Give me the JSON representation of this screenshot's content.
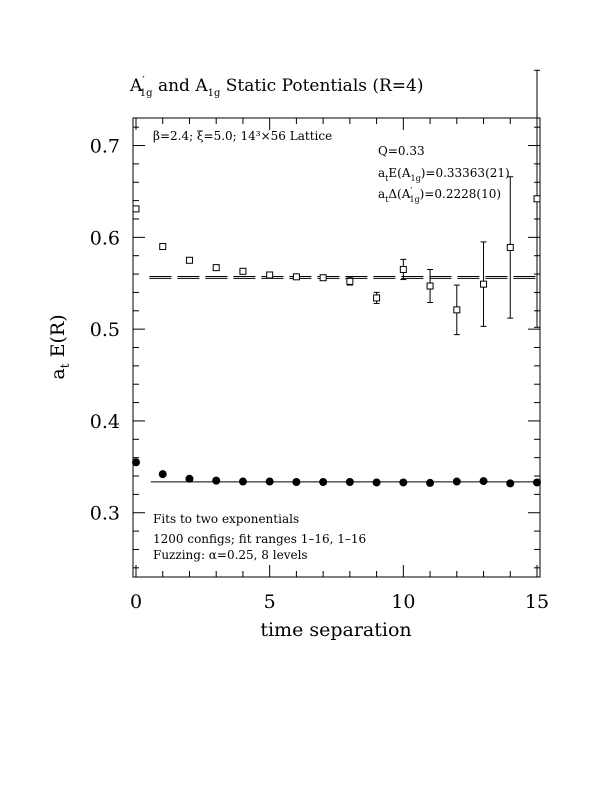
{
  "chart_data": {
    "type": "scatter",
    "title_main": "A",
    "title_parts": {
      "a": "A",
      "a_prime": "′",
      "a_sub": "1g",
      "mid": " and ",
      "b": "A",
      "b_sub": "1g",
      "end": " Static Potentials (R=4)"
    },
    "xlabel": "time separation",
    "ylabel_parts": {
      "main": "a",
      "sub": "t",
      "rest": " E(R)"
    },
    "xlim": [
      0,
      15
    ],
    "ylim": [
      0.23,
      0.73
    ],
    "x_ticks": [
      0,
      5,
      10,
      15
    ],
    "x_tick_labels": [
      "0",
      "5",
      "10",
      "15"
    ],
    "y_ticks": [
      0.3,
      0.4,
      0.5,
      0.6,
      0.7
    ],
    "y_tick_labels": [
      "0.3",
      "0.4",
      "0.5",
      "0.6",
      "0.7"
    ],
    "annotations": {
      "lattice": "β=2.4; ξ=5.0; 14³×56 Lattice",
      "q": "Q=0.33",
      "energy_prefix": "a",
      "energy_prefix_sub": "t",
      "energy_mid": "E(A",
      "energy_sub": "1g",
      "energy_val": ")=0.33363(21)",
      "delta_prefix": "a",
      "delta_prefix_sub": "t",
      "delta_mid": "Δ(A",
      "delta_prime": "′",
      "delta_sub": "1g",
      "delta_val": ")=0.2228(10)",
      "fit1": "Fits to two exponentials",
      "fit2": "1200 configs; fit ranges 1–16, 1–16",
      "fit3": "Fuzzing: α=0.25, 8 levels"
    },
    "series": [
      {
        "marker": "open-square",
        "x": [
          0,
          1,
          2,
          3,
          4,
          5,
          6,
          7,
          8,
          9,
          10,
          11,
          12,
          13,
          14,
          15
        ],
        "y": [
          0.631,
          0.59,
          0.575,
          0.567,
          0.563,
          0.559,
          0.557,
          0.556,
          0.552,
          0.534,
          0.565,
          0.547,
          0.521,
          0.549,
          0.589,
          0.642
        ],
        "err": [
          0.001,
          0.001,
          0.001,
          0.001,
          0.001,
          0.001,
          0.001,
          0.002,
          0.004,
          0.006,
          0.011,
          0.018,
          0.027,
          0.046,
          0.077,
          0.14
        ]
      },
      {
        "marker": "filled-circle",
        "x": [
          0,
          1,
          2,
          3,
          4,
          5,
          6,
          7,
          8,
          9,
          10,
          11,
          12,
          13,
          14,
          15
        ],
        "y": [
          0.355,
          0.342,
          0.337,
          0.335,
          0.334,
          0.334,
          0.3335,
          0.3335,
          0.3335,
          0.333,
          0.333,
          0.3325,
          0.334,
          0.3345,
          0.332,
          0.333
        ],
        "err": [
          0,
          0,
          0,
          0,
          0,
          0,
          0,
          0,
          0,
          0,
          0,
          0,
          0,
          0,
          0,
          0
        ]
      }
    ],
    "fit_lines": [
      {
        "y": 0.33363,
        "x_from": 1,
        "x_to": 15
      },
      {
        "y_band": [
          0.5553,
          0.5573
        ],
        "x_from": 0.5,
        "x_to": 15,
        "style": "dashed"
      }
    ]
  }
}
